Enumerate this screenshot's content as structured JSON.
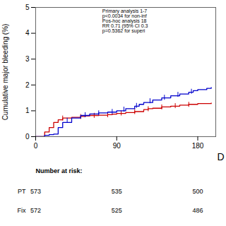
{
  "chart_data": {
    "type": "step",
    "ylabel": "Cumulative major bleeding (%)",
    "xlim": [
      0,
      200
    ],
    "xticks": [
      0,
      90,
      180
    ],
    "ylim": [
      0,
      5
    ],
    "yticks": [
      0,
      1,
      2,
      3,
      4,
      5
    ],
    "annotation": "Primary analysis 1-7\np<0.0034 for non-inf\nPos-hoc analysis 18\nRR 0.71 (95% CI 0.3\np=0.5362 for superi",
    "panel_label": "D",
    "at_risk_label": "Number at risk:",
    "series": [
      {
        "name": "PT",
        "color": "#cc0000",
        "x": [
          0,
          5,
          10,
          15,
          20,
          25,
          30,
          40,
          50,
          55,
          60,
          70,
          80,
          85,
          90,
          100,
          110,
          120,
          125,
          130,
          140,
          150,
          160,
          170,
          180,
          195
        ],
        "values": [
          0,
          0.0,
          0.18,
          0.35,
          0.55,
          0.65,
          0.72,
          0.75,
          0.78,
          0.8,
          0.82,
          0.83,
          0.85,
          0.87,
          0.9,
          0.93,
          0.97,
          1.05,
          1.08,
          1.1,
          1.15,
          1.18,
          1.22,
          1.25,
          1.28,
          1.3
        ],
        "censor_x": [
          30,
          50,
          65,
          80,
          95,
          110,
          125,
          140,
          155,
          170
        ],
        "censor_y": [
          0.72,
          0.78,
          0.825,
          0.85,
          0.915,
          0.97,
          1.08,
          1.15,
          1.2,
          1.25
        ],
        "at_risk": [
          573,
          535,
          500
        ]
      },
      {
        "name": "Fix",
        "color": "#0000cc",
        "x": [
          0,
          5,
          10,
          15,
          20,
          25,
          30,
          40,
          50,
          60,
          70,
          80,
          90,
          100,
          110,
          115,
          120,
          130,
          140,
          150,
          160,
          170,
          175,
          180,
          190,
          195
        ],
        "values": [
          0,
          0.0,
          0.05,
          0.08,
          0.1,
          0.35,
          0.55,
          0.72,
          0.82,
          0.88,
          0.92,
          0.95,
          1.0,
          1.08,
          1.18,
          1.25,
          1.32,
          1.42,
          1.5,
          1.58,
          1.65,
          1.72,
          1.78,
          1.82,
          1.87,
          1.9
        ],
        "censor_x": [
          35,
          55,
          70,
          85,
          98,
          112,
          127,
          143,
          158,
          173
        ],
        "censor_y": [
          0.635,
          0.85,
          0.92,
          0.975,
          1.064,
          1.208,
          1.39,
          1.524,
          1.636,
          1.756
        ],
        "at_risk": [
          572,
          525,
          486
        ]
      }
    ]
  }
}
